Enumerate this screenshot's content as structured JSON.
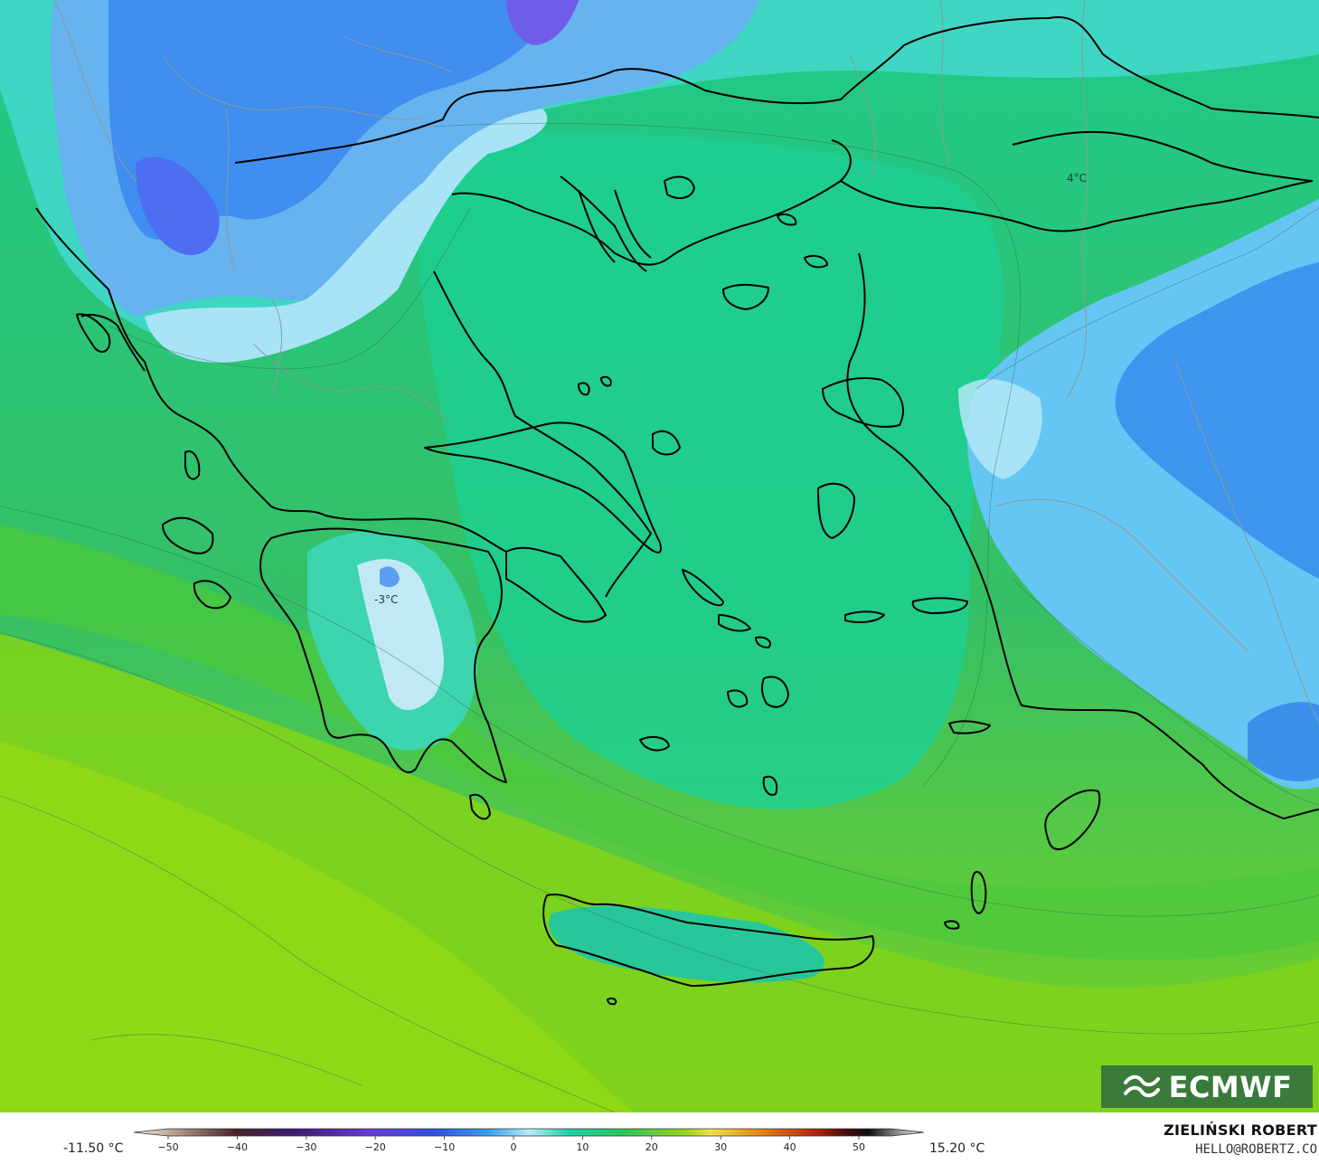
{
  "map": {
    "labels": {
      "greece_interior": "-3°C",
      "turkey_north": "4°C"
    }
  },
  "legend": {
    "min_value": "-11.50 °C",
    "max_value": "15.20 °C",
    "ticks": [
      "−50",
      "−40",
      "−30",
      "−20",
      "−10",
      "0",
      "10",
      "20",
      "30",
      "40",
      "50"
    ]
  },
  "logo": {
    "text": "ECMWF",
    "icon": "ecmwf-waves-icon",
    "color": "#3a7a3a"
  },
  "credit": {
    "name": "ZIELIŃSKI ROBERT",
    "email": "HELLO@ROBERTZ.CO"
  }
}
